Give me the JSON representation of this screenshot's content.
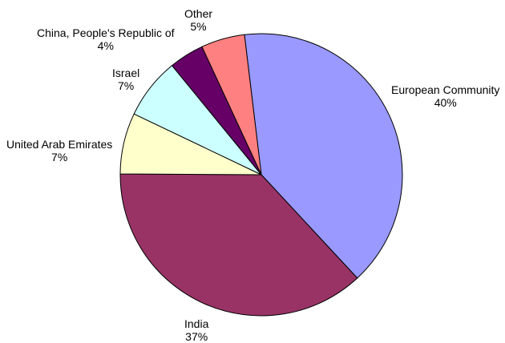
{
  "chart_data": {
    "type": "pie",
    "slices": [
      {
        "label": "European Community",
        "value": 40,
        "value_label": "40%",
        "color": "#9999FF"
      },
      {
        "label": "India",
        "value": 37,
        "value_label": "37%",
        "color": "#993366"
      },
      {
        "label": "United Arab Emirates",
        "value": 7,
        "value_label": "7%",
        "color": "#FFFFCC"
      },
      {
        "label": "Israel",
        "value": 7,
        "value_label": "7%",
        "color": "#CCFFFF"
      },
      {
        "label": "China, People's Republic of",
        "value": 4,
        "value_label": "4%",
        "color": "#660066"
      },
      {
        "label": "Other",
        "value": 5,
        "value_label": "5%",
        "color": "#FF8080"
      }
    ],
    "start_at": "top, clockwise",
    "legend": "none (labels beside slices)",
    "title": ""
  }
}
